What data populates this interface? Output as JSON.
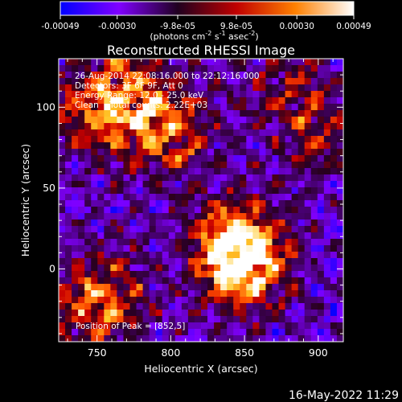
{
  "colorbar": {
    "ticks": [
      "-0.00049",
      "-0.00030",
      "-9.8e-05",
      "9.8e-05",
      "0.00030",
      "0.00049"
    ],
    "tick_values": [
      -0.00049,
      -0.0003,
      -9.8e-05,
      9.8e-05,
      0.0003,
      0.00049
    ],
    "range": [
      -0.00049,
      0.00049
    ],
    "units": "(photons cm",
    "units_exp1": "-2",
    "units_mid": " s",
    "units_exp2": "-1",
    "units_end": " asec",
    "units_exp3": "-2",
    "units_close": ")",
    "colors": [
      "#0000ff",
      "#8000ff",
      "#200020",
      "#c00000",
      "#ff8000",
      "#ffffff"
    ]
  },
  "chart_data": {
    "type": "heatmap",
    "title": "Reconstructed RHESSI Image",
    "xlabel": "Heliocentric X (arcsec)",
    "ylabel": "Heliocentric Y (arcsec)",
    "xlim": [
      724,
      917
    ],
    "ylim": [
      -45,
      130
    ],
    "x_ticks": [
      750,
      800,
      850,
      900
    ],
    "y_ticks": [
      0,
      50,
      100
    ],
    "info_lines": [
      "26-Aug-2014 22:08:16.000 to 22:12:16.000",
      "Detectors: 3F 6F 9F, Att 0",
      "Energy Range: 12.0 - 25.0 keV",
      "Clean    Total counts: 2.22E+03"
    ],
    "peak_label": "Position of Peak = [852,5]",
    "peak_position": [
      852,
      5
    ],
    "sources": [
      {
        "x": 850,
        "y": 5,
        "strength": 1.0
      },
      {
        "x": 842,
        "y": 15,
        "strength": 0.6
      },
      {
        "x": 800,
        "y": 85,
        "strength": 0.7
      },
      {
        "x": 770,
        "y": 110,
        "strength": 0.6
      },
      {
        "x": 745,
        "y": 95,
        "strength": 0.55
      },
      {
        "x": 760,
        "y": -15,
        "strength": 0.5
      },
      {
        "x": 740,
        "y": -30,
        "strength": 0.45
      },
      {
        "x": 880,
        "y": 110,
        "strength": 0.45
      },
      {
        "x": 905,
        "y": 80,
        "strength": 0.4
      }
    ]
  },
  "timestamp": "16-May-2022 11:29"
}
